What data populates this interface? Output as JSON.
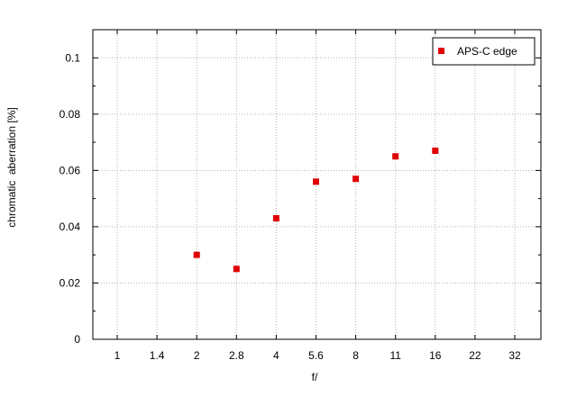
{
  "chart_data": {
    "type": "scatter",
    "xlabel": "f/",
    "ylabel": "chromatic  aberration [%]",
    "x_categories": [
      "1",
      "1.4",
      "2",
      "2.8",
      "4",
      "5.6",
      "8",
      "11",
      "16",
      "22",
      "32"
    ],
    "ylim": [
      0,
      0.11
    ],
    "y_ticks": [
      0,
      0.02,
      0.04,
      0.06,
      0.08,
      0.1
    ],
    "y_tick_labels": [
      "0",
      "0.02",
      "0.04",
      "0.06",
      "0.08",
      "0.1"
    ],
    "grid": true,
    "legend_position": "top-right",
    "series": [
      {
        "name": "APS-C edge",
        "color": "#e00000",
        "marker": "square",
        "points": [
          {
            "x": "2",
            "y": 0.03
          },
          {
            "x": "2.8",
            "y": 0.025
          },
          {
            "x": "4",
            "y": 0.043
          },
          {
            "x": "5.6",
            "y": 0.056
          },
          {
            "x": "8",
            "y": 0.057
          },
          {
            "x": "11",
            "y": 0.065
          },
          {
            "x": "16",
            "y": 0.067
          }
        ]
      }
    ]
  }
}
